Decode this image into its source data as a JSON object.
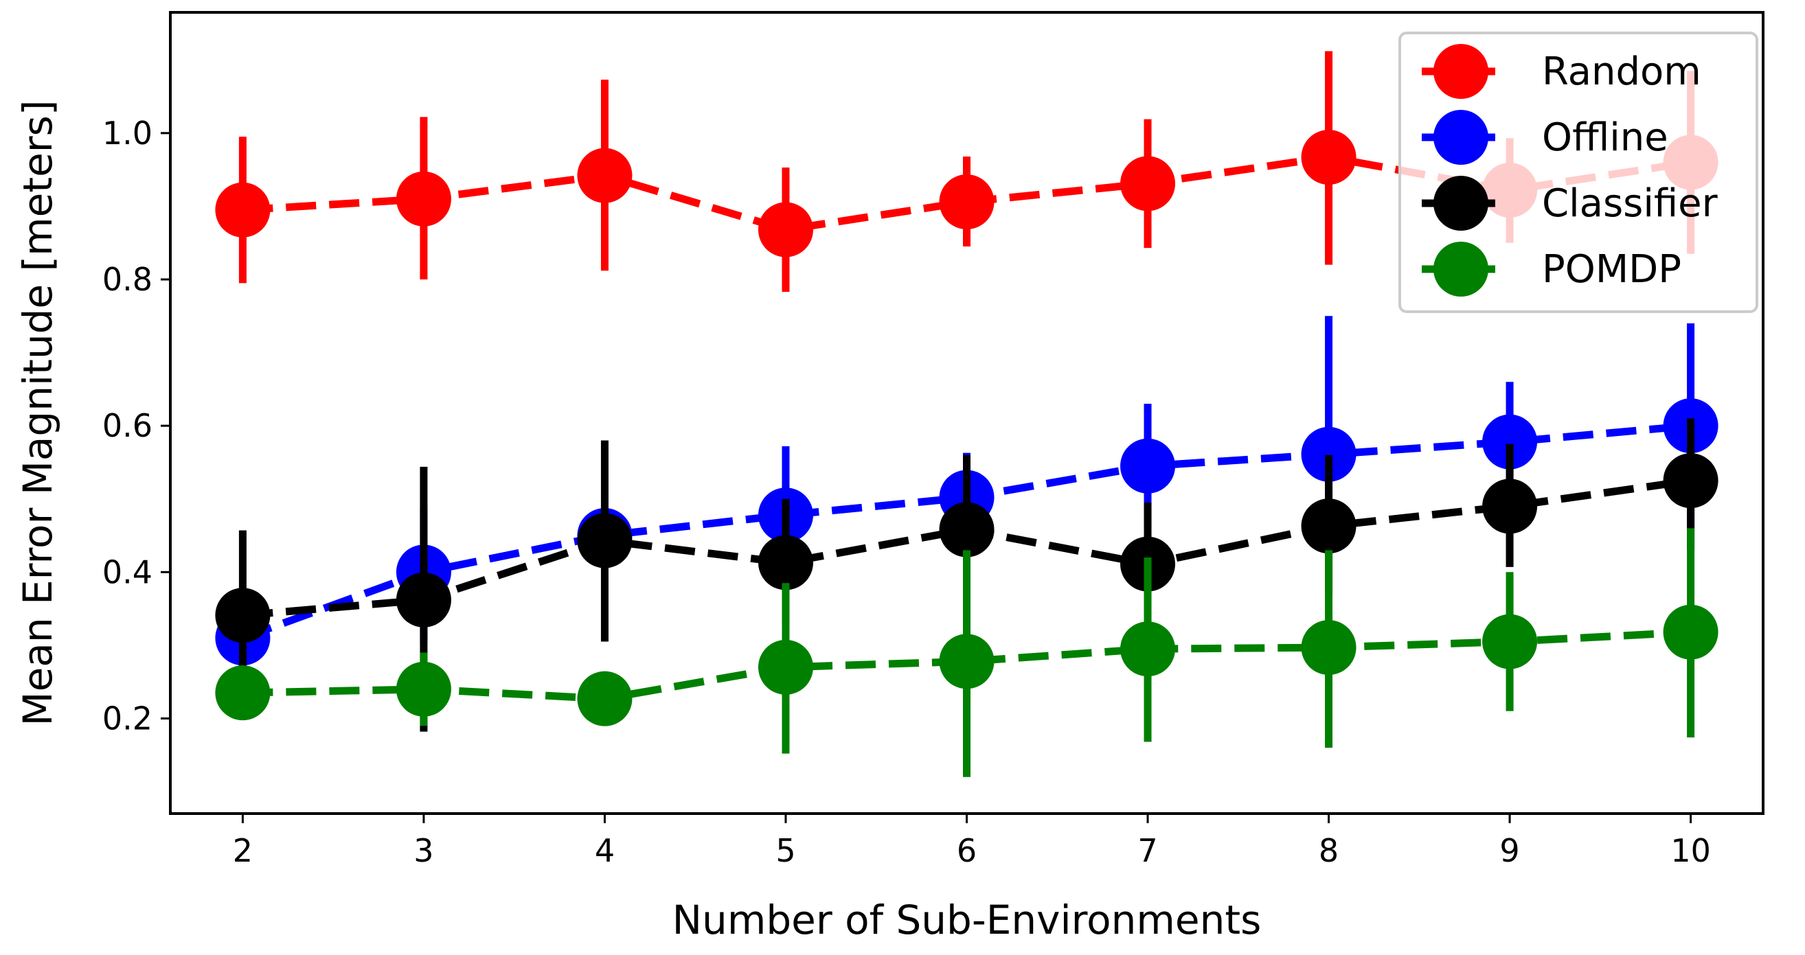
{
  "chart_data": {
    "type": "line",
    "title": "",
    "xlabel": "Number of Sub-Environments",
    "ylabel": "Mean Error Magnitude [meters]",
    "x": [
      2,
      3,
      4,
      5,
      6,
      7,
      8,
      9,
      10
    ],
    "xlim": [
      1.6,
      10.4
    ],
    "ylim": [
      0.07,
      1.165
    ],
    "xticks": [
      "2",
      "3",
      "4",
      "5",
      "6",
      "7",
      "8",
      "9",
      "10"
    ],
    "yticks": [
      "0.2",
      "0.4",
      "0.6",
      "0.8",
      "1.0"
    ],
    "ytick_values": [
      0.2,
      0.4,
      0.6,
      0.8,
      1.0
    ],
    "grid": false,
    "legend_position": "top-right",
    "series": [
      {
        "name": "Random",
        "color": "#ff0000",
        "values": [
          0.895,
          0.91,
          0.942,
          0.868,
          0.906,
          0.931,
          0.967,
          0.922,
          0.96
        ],
        "err_low": [
          0.795,
          0.8,
          0.812,
          0.783,
          0.845,
          0.843,
          0.82,
          0.85,
          0.835
        ],
        "err_high": [
          0.995,
          1.022,
          1.073,
          0.953,
          0.968,
          1.019,
          1.112,
          0.993,
          1.085
        ]
      },
      {
        "name": "Offline",
        "color": "#0000ff",
        "values": [
          0.31,
          0.4,
          0.45,
          0.478,
          0.502,
          0.545,
          0.561,
          0.578,
          0.6
        ],
        "err_low": [
          0.28,
          0.305,
          0.41,
          0.39,
          0.44,
          0.46,
          0.38,
          0.5,
          0.46
        ],
        "err_high": [
          0.34,
          0.49,
          0.49,
          0.572,
          0.563,
          0.63,
          0.75,
          0.66,
          0.74
        ]
      },
      {
        "name": "Classifier",
        "color": "#000000",
        "values": [
          0.341,
          0.362,
          0.443,
          0.413,
          0.458,
          0.411,
          0.463,
          0.49,
          0.525
        ],
        "err_low": [
          0.225,
          0.182,
          0.305,
          0.33,
          0.35,
          0.33,
          0.37,
          0.407,
          0.43
        ],
        "err_high": [
          0.457,
          0.544,
          0.58,
          0.5,
          0.56,
          0.495,
          0.56,
          0.575,
          0.61
        ]
      },
      {
        "name": "POMDP",
        "color": "#008000",
        "values": [
          0.235,
          0.24,
          0.227,
          0.27,
          0.278,
          0.295,
          0.297,
          0.305,
          0.318
        ],
        "err_low": [
          0.22,
          0.19,
          0.215,
          0.152,
          0.12,
          0.168,
          0.16,
          0.21,
          0.174
        ],
        "err_high": [
          0.25,
          0.29,
          0.24,
          0.385,
          0.43,
          0.42,
          0.43,
          0.4,
          0.46
        ]
      }
    ]
  }
}
